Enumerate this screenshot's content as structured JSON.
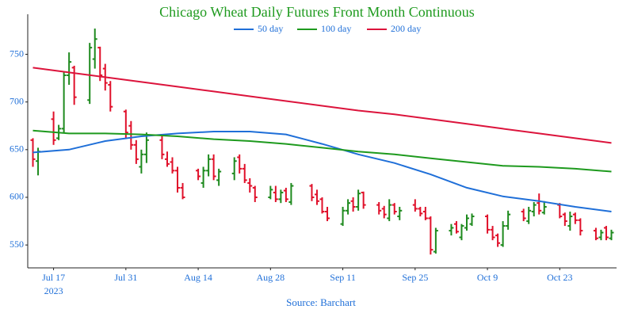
{
  "chart_data": {
    "type": "ohlc",
    "title": "Chicago Wheat Daily Futures Front Month Continuous",
    "title_color": "#1e9a1e",
    "source": "Source: Barchart",
    "x": [
      "2023-07-13",
      "2023-07-14",
      "2023-07-17",
      "2023-07-18",
      "2023-07-19",
      "2023-07-20",
      "2023-07-21",
      "2023-07-24",
      "2023-07-25",
      "2023-07-26",
      "2023-07-27",
      "2023-07-28",
      "2023-07-31",
      "2023-08-01",
      "2023-08-02",
      "2023-08-03",
      "2023-08-04",
      "2023-08-07",
      "2023-08-08",
      "2023-08-09",
      "2023-08-10",
      "2023-08-11",
      "2023-08-14",
      "2023-08-15",
      "2023-08-16",
      "2023-08-17",
      "2023-08-18",
      "2023-08-21",
      "2023-08-22",
      "2023-08-23",
      "2023-08-24",
      "2023-08-25",
      "2023-08-28",
      "2023-08-29",
      "2023-08-30",
      "2023-08-31",
      "2023-09-01",
      "2023-09-05",
      "2023-09-06",
      "2023-09-07",
      "2023-09-08",
      "2023-09-11",
      "2023-09-12",
      "2023-09-13",
      "2023-09-14",
      "2023-09-15",
      "2023-09-18",
      "2023-09-19",
      "2023-09-20",
      "2023-09-21",
      "2023-09-22",
      "2023-09-25",
      "2023-09-26",
      "2023-09-27",
      "2023-09-28",
      "2023-09-29",
      "2023-10-02",
      "2023-10-03",
      "2023-10-04",
      "2023-10-05",
      "2023-10-06",
      "2023-10-09",
      "2023-10-10",
      "2023-10-11",
      "2023-10-12",
      "2023-10-13",
      "2023-10-16",
      "2023-10-17",
      "2023-10-18",
      "2023-10-19",
      "2023-10-20",
      "2023-10-23",
      "2023-10-24",
      "2023-10-25",
      "2023-10-26",
      "2023-10-27",
      "2023-10-30",
      "2023-10-31",
      "2023-11-01",
      "2023-11-02"
    ],
    "open": [
      660,
      638,
      682,
      662,
      672,
      728,
      736,
      702,
      745,
      757,
      735,
      718,
      690,
      675,
      655,
      632,
      645,
      660,
      640,
      637,
      628,
      610,
      628,
      615,
      628,
      640,
      618,
      625,
      642,
      630,
      615,
      610,
      600,
      605,
      598,
      607,
      595,
      612,
      603,
      598,
      585,
      572,
      586,
      596,
      590,
      605,
      592,
      588,
      578,
      592,
      580,
      592,
      588,
      585,
      578,
      543,
      565,
      572,
      558,
      568,
      572,
      580,
      566,
      560,
      550,
      570,
      585,
      575,
      585,
      594,
      584,
      592,
      582,
      570,
      582,
      576,
      565,
      558,
      568,
      557
    ],
    "high": [
      662,
      652,
      690,
      676,
      732,
      752,
      738,
      762,
      777,
      758,
      740,
      722,
      692,
      680,
      660,
      650,
      668,
      665,
      648,
      642,
      632,
      615,
      630,
      632,
      645,
      645,
      630,
      642,
      645,
      635,
      620,
      612,
      612,
      612,
      608,
      610,
      615,
      614,
      608,
      600,
      590,
      590,
      598,
      600,
      608,
      606,
      595,
      591,
      598,
      594,
      590,
      598,
      590,
      590,
      580,
      568,
      572,
      575,
      572,
      582,
      583,
      582,
      570,
      562,
      575,
      586,
      588,
      590,
      595,
      604,
      596,
      594,
      584,
      585,
      584,
      578,
      568,
      566,
      570,
      566
    ],
    "low": [
      632,
      623,
      655,
      660,
      668,
      718,
      697,
      698,
      735,
      722,
      712,
      690,
      662,
      650,
      635,
      625,
      636,
      640,
      632,
      625,
      605,
      598,
      618,
      610,
      622,
      618,
      612,
      618,
      625,
      615,
      605,
      595,
      598,
      595,
      594,
      595,
      592,
      596,
      592,
      583,
      575,
      570,
      582,
      585,
      586,
      588,
      582,
      578,
      575,
      582,
      576,
      585,
      580,
      576,
      540,
      541,
      560,
      562,
      555,
      565,
      570,
      562,
      555,
      548,
      548,
      566,
      575,
      572,
      580,
      582,
      582,
      578,
      570,
      565,
      572,
      560,
      555,
      555,
      555,
      555
    ],
    "close": [
      640,
      648,
      660,
      672,
      728,
      742,
      705,
      757,
      766,
      728,
      720,
      695,
      668,
      655,
      640,
      645,
      660,
      645,
      635,
      628,
      610,
      600,
      622,
      628,
      640,
      622,
      627,
      638,
      630,
      618,
      612,
      600,
      608,
      598,
      605,
      598,
      612,
      600,
      596,
      585,
      578,
      586,
      594,
      590,
      604,
      592,
      586,
      582,
      592,
      585,
      586,
      588,
      583,
      578,
      545,
      565,
      568,
      564,
      570,
      578,
      580,
      566,
      558,
      552,
      570,
      582,
      578,
      586,
      592,
      586,
      590,
      580,
      575,
      580,
      576,
      565,
      557,
      563,
      558,
      563
    ],
    "up_color": "#1e8a1e",
    "down_color": "#e0102a",
    "series": [
      {
        "name": "50 day",
        "color": "#1f6fd8",
        "x": [
          "2023-07-13",
          "2023-07-20",
          "2023-07-27",
          "2023-08-03",
          "2023-08-10",
          "2023-08-17",
          "2023-08-24",
          "2023-08-31",
          "2023-09-07",
          "2023-09-14",
          "2023-09-21",
          "2023-09-28",
          "2023-10-05",
          "2023-10-12",
          "2023-10-19",
          "2023-10-26",
          "2023-11-02"
        ],
        "values": [
          647,
          650,
          659,
          664,
          667,
          669,
          669,
          666,
          656,
          645,
          636,
          624,
          610,
          601,
          596,
          590,
          585
        ]
      },
      {
        "name": "100 day",
        "color": "#1e9a1e",
        "x": [
          "2023-07-13",
          "2023-07-20",
          "2023-07-27",
          "2023-08-03",
          "2023-08-10",
          "2023-08-17",
          "2023-08-24",
          "2023-08-31",
          "2023-09-07",
          "2023-09-14",
          "2023-09-21",
          "2023-09-28",
          "2023-10-05",
          "2023-10-12",
          "2023-10-19",
          "2023-10-26",
          "2023-11-02"
        ],
        "values": [
          670,
          667,
          667,
          666,
          664,
          661,
          659,
          656,
          652,
          648,
          645,
          641,
          637,
          633,
          632,
          630,
          627
        ]
      },
      {
        "name": "200 day",
        "color": "#dc143c",
        "x": [
          "2023-07-13",
          "2023-07-20",
          "2023-07-27",
          "2023-08-03",
          "2023-08-10",
          "2023-08-17",
          "2023-08-24",
          "2023-08-31",
          "2023-09-07",
          "2023-09-14",
          "2023-09-21",
          "2023-09-28",
          "2023-10-05",
          "2023-10-12",
          "2023-10-19",
          "2023-10-26",
          "2023-11-02"
        ],
        "values": [
          736,
          731,
          726,
          721,
          716,
          711,
          706,
          701,
          696,
          691,
          687,
          682,
          677,
          672,
          667,
          662,
          657
        ]
      }
    ],
    "xlim": [
      "2023-07-12",
      "2023-11-03"
    ],
    "xticks": [
      {
        "value": "2023-07-17",
        "label": "Jul 17\n2023"
      },
      {
        "value": "2023-07-31",
        "label": "Jul 31"
      },
      {
        "value": "2023-08-14",
        "label": "Aug 14"
      },
      {
        "value": "2023-08-28",
        "label": "Aug 28"
      },
      {
        "value": "2023-09-11",
        "label": "Sep 11"
      },
      {
        "value": "2023-09-25",
        "label": "Sep 25"
      },
      {
        "value": "2023-10-09",
        "label": "Oct 9"
      },
      {
        "value": "2023-10-23",
        "label": "Oct 23"
      }
    ],
    "ylim": [
      526,
      792
    ],
    "yticks": [
      550,
      600,
      650,
      700,
      750
    ],
    "grid": false
  }
}
